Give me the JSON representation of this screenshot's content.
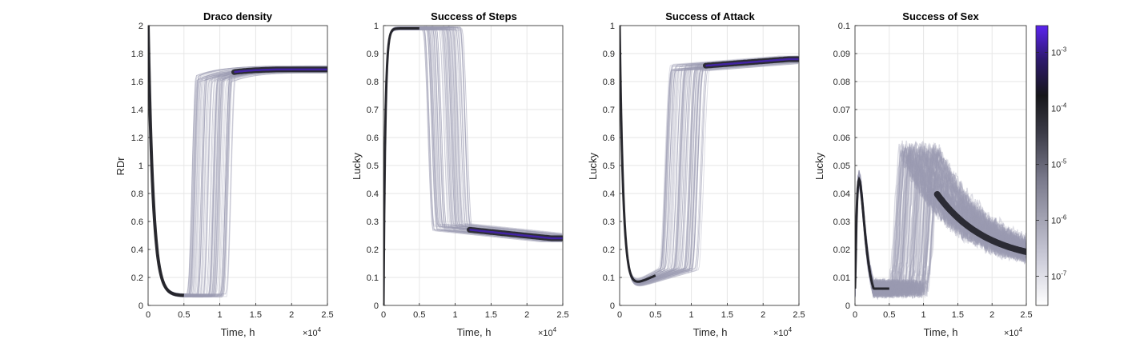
{
  "chart_data": [
    {
      "type": "heatmap",
      "title": "Draco density",
      "xlabel": "Time, h",
      "ylabel": "RDr",
      "xlim": [
        0,
        25000
      ],
      "ylim": [
        0,
        2
      ],
      "xticks": [
        "0",
        "0.5",
        "1",
        "1.5",
        "2",
        "2.5"
      ],
      "x_exponent_label": "×10",
      "x_exponent": "4",
      "yticks": [
        "0",
        "0.2",
        "0.4",
        "0.6",
        "0.8",
        "1",
        "1.2",
        "1.4",
        "1.6",
        "1.8",
        "2"
      ],
      "ytick_values": [
        0,
        0.2,
        0.4,
        0.6,
        0.8,
        1,
        1.2,
        1.4,
        1.6,
        1.8,
        2
      ],
      "grid": true,
      "trajectory_envelope": {
        "description": "density of trajectories: start 2, drop to ~0.07 by t≈3000, rise between t≈5500-11000 to plateau",
        "start": 2.0,
        "minimum": 0.07,
        "minimum_time": 3500,
        "transition_start": 5500,
        "transition_end": 11000,
        "plateau_start": 1.62,
        "plateau_end": 1.69
      }
    },
    {
      "type": "heatmap",
      "title": "Success of Steps",
      "xlabel": "Time, h",
      "ylabel": "Lucky",
      "xlim": [
        0,
        25000
      ],
      "ylim": [
        0,
        1
      ],
      "xticks": [
        "0",
        "0.5",
        "1",
        "1.5",
        "2",
        "2.5"
      ],
      "x_exponent_label": "×10",
      "x_exponent": "4",
      "yticks": [
        "0",
        "0.1",
        "0.2",
        "0.3",
        "0.4",
        "0.5",
        "0.6",
        "0.7",
        "0.8",
        "0.9",
        "1"
      ],
      "ytick_values": [
        0,
        0.1,
        0.2,
        0.3,
        0.4,
        0.5,
        0.6,
        0.7,
        0.8,
        0.9,
        1
      ],
      "grid": true,
      "trajectory_envelope": {
        "start": 0.0,
        "rise_to": 0.99,
        "rise_time": 1000,
        "transition_start": 5500,
        "transition_end": 11000,
        "plateau_start": 0.28,
        "plateau_end": 0.24
      }
    },
    {
      "type": "heatmap",
      "title": "Success of Attack",
      "xlabel": "Time, h",
      "ylabel": "Lucky",
      "xlim": [
        0,
        25000
      ],
      "ylim": [
        0,
        1
      ],
      "xticks": [
        "0",
        "0.5",
        "1",
        "1.5",
        "2",
        "2.5"
      ],
      "x_exponent_label": "×10",
      "x_exponent": "4",
      "yticks": [
        "0",
        "0.1",
        "0.2",
        "0.3",
        "0.4",
        "0.5",
        "0.6",
        "0.7",
        "0.8",
        "0.9",
        "1"
      ],
      "ytick_values": [
        0,
        0.1,
        0.2,
        0.3,
        0.4,
        0.5,
        0.6,
        0.7,
        0.8,
        0.9,
        1
      ],
      "grid": true,
      "trajectory_envelope": {
        "start": 1.0,
        "minimum": 0.05,
        "minimum_time": 2500,
        "transition_start": 5500,
        "transition_end": 11000,
        "plateau_start": 0.85,
        "plateau_end": 0.88
      }
    },
    {
      "type": "heatmap",
      "title": "Success of Sex",
      "xlabel": "Time, h",
      "ylabel": "Lucky",
      "xlim": [
        0,
        25000
      ],
      "ylim": [
        0,
        0.1
      ],
      "xticks": [
        "0",
        "0.5",
        "1",
        "1.5",
        "2",
        "2.5"
      ],
      "x_exponent_label": "×10",
      "x_exponent": "4",
      "yticks": [
        "0",
        "0.01",
        "0.02",
        "0.03",
        "0.04",
        "0.05",
        "0.06",
        "0.07",
        "0.08",
        "0.09",
        "0.1"
      ],
      "ytick_values": [
        0,
        0.01,
        0.02,
        0.03,
        0.04,
        0.05,
        0.06,
        0.07,
        0.08,
        0.09,
        0.1
      ],
      "grid": true,
      "trajectory_envelope": {
        "first_peak": 0.045,
        "first_peak_time": 500,
        "dip": 0.01,
        "dip_time": 5500,
        "second_peak": 0.055,
        "second_peak_time": 7500,
        "end_level": 0.015
      }
    }
  ],
  "colorbar": {
    "scale": "log",
    "range": [
      3e-08,
      0.003
    ],
    "ticks": [
      {
        "base": "10",
        "exp": "-7",
        "value": 1e-07
      },
      {
        "base": "10",
        "exp": "-6",
        "value": 1e-06
      },
      {
        "base": "10",
        "exp": "-5",
        "value": 1e-05
      },
      {
        "base": "10",
        "exp": "-4",
        "value": 0.0001
      },
      {
        "base": "10",
        "exp": "-3",
        "value": 0.001
      }
    ],
    "colors": [
      "#ffffff",
      "#a8a8bc",
      "#4e4e5e",
      "#1c1c22",
      "#3a1e8c",
      "#5b24f0"
    ]
  },
  "colors": {
    "grid": "#e6e6e6",
    "axis": "#262626",
    "density_light": "#9a9ab2",
    "density_mid": "#505060",
    "density_dark": "#18181e",
    "density_peak": "#4b23c8"
  }
}
